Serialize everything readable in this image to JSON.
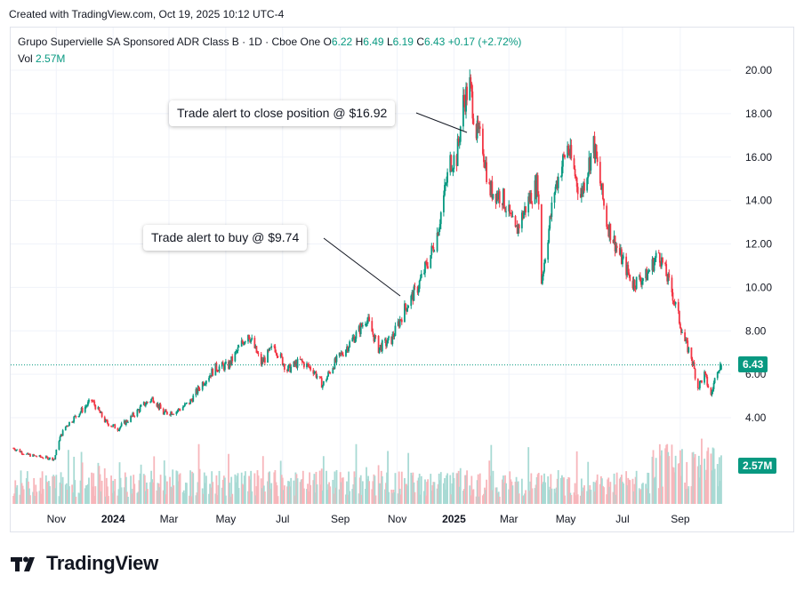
{
  "header": {
    "created_text": "Created with TradingView.com, Oct 19, 2025 10:12 UTC-4"
  },
  "legend": {
    "symbol_text": "Grupo Supervielle SA Sponsored ADR Class B · 1D · Cboe One",
    "open_label": "O",
    "open_value": "6.22",
    "high_label": "H",
    "high_value": "6.49",
    "low_label": "L",
    "low_value": "6.19",
    "close_label": "C",
    "close_value": "6.43",
    "change_value": "+0.17 (+2.72%)",
    "volume_label": "Vol",
    "volume_value": "2.57M"
  },
  "callouts": {
    "buy": "Trade alert to buy @ $9.74",
    "close": "Trade alert to close position @ $16.92"
  },
  "price_tag": "6.43",
  "volume_tag": "2.57M",
  "brand": {
    "name": "TradingView",
    "logo_icon": "tradingview-logo-icon"
  },
  "colors": {
    "up": "#089981",
    "down": "#f23645",
    "up_vol": "#a8dad4",
    "down_vol": "#f7b6bb"
  },
  "chart_data": {
    "type": "candlestick",
    "ylim": [
      2,
      20
    ],
    "y_ticks": [
      "20.00",
      "18.00",
      "16.00",
      "14.00",
      "12.00",
      "10.00",
      "8.00",
      "6.00",
      "4.00"
    ],
    "y_tick_values": [
      20,
      18,
      16,
      14,
      12,
      10,
      8,
      6,
      4
    ],
    "x_ticks": [
      "Nov",
      "2024",
      "Mar",
      "May",
      "Jul",
      "Sep",
      "Nov",
      "2025",
      "Mar",
      "May",
      "Jul",
      "Sep"
    ],
    "x_tick_bold": [
      false,
      true,
      false,
      false,
      false,
      false,
      false,
      true,
      false,
      false,
      false,
      false
    ],
    "x_tick_dates": [
      "2023-11",
      "2024-01",
      "2024-03",
      "2024-05",
      "2024-07",
      "2024-09",
      "2024-11",
      "2025-01",
      "2025-03",
      "2025-05",
      "2025-07",
      "2025-09"
    ],
    "last_price": 6.43,
    "approx_close_path": [
      [
        "2023-09-18",
        2.6
      ],
      [
        "2023-10-02",
        2.3
      ],
      [
        "2023-10-16",
        2.2
      ],
      [
        "2023-11-01",
        2.1
      ],
      [
        "2023-11-06",
        3.0
      ],
      [
        "2023-11-13",
        3.6
      ],
      [
        "2023-11-27",
        4.2
      ],
      [
        "2023-12-11",
        4.8
      ],
      [
        "2023-12-26",
        3.8
      ],
      [
        "2024-01-08",
        3.5
      ],
      [
        "2024-01-22",
        4.0
      ],
      [
        "2024-02-05",
        4.6
      ],
      [
        "2024-02-15",
        4.9
      ],
      [
        "2024-02-26",
        4.2
      ],
      [
        "2024-03-11",
        4.3
      ],
      [
        "2024-03-25",
        4.7
      ],
      [
        "2024-04-08",
        5.6
      ],
      [
        "2024-04-22",
        6.3
      ],
      [
        "2024-05-06",
        6.4
      ],
      [
        "2024-05-20",
        7.4
      ],
      [
        "2024-05-27",
        7.9
      ],
      [
        "2024-06-10",
        6.5
      ],
      [
        "2024-06-24",
        7.3
      ],
      [
        "2024-07-08",
        6.2
      ],
      [
        "2024-07-22",
        6.6
      ],
      [
        "2024-08-05",
        6.2
      ],
      [
        "2024-08-15",
        5.5
      ],
      [
        "2024-08-26",
        6.4
      ],
      [
        "2024-09-09",
        7.2
      ],
      [
        "2024-09-23",
        8.0
      ],
      [
        "2024-10-01",
        8.6
      ],
      [
        "2024-10-14",
        7.2
      ],
      [
        "2024-10-28",
        7.6
      ],
      [
        "2024-11-11",
        9.0
      ],
      [
        "2024-11-25",
        10.0
      ],
      [
        "2024-12-09",
        11.5
      ],
      [
        "2024-12-16",
        12.5
      ],
      [
        "2024-12-30",
        15.8
      ],
      [
        "2025-01-06",
        16.0
      ],
      [
        "2025-01-13",
        18.5
      ],
      [
        "2025-01-20",
        19.3
      ],
      [
        "2025-01-27",
        17.2
      ],
      [
        "2025-02-03",
        16.5
      ],
      [
        "2025-02-10",
        14.5
      ],
      [
        "2025-02-24",
        14.2
      ],
      [
        "2025-03-10",
        12.5
      ],
      [
        "2025-03-24",
        14.0
      ],
      [
        "2025-04-03",
        14.8
      ],
      [
        "2025-04-07",
        10.3
      ],
      [
        "2025-04-21",
        14.5
      ],
      [
        "2025-05-05",
        16.5
      ],
      [
        "2025-05-19",
        14.2
      ],
      [
        "2025-06-02",
        16.6
      ],
      [
        "2025-06-16",
        13.0
      ],
      [
        "2025-06-30",
        11.5
      ],
      [
        "2025-07-14",
        10.2
      ],
      [
        "2025-07-28",
        10.5
      ],
      [
        "2025-08-11",
        11.6
      ],
      [
        "2025-08-25",
        9.8
      ],
      [
        "2025-09-08",
        7.5
      ],
      [
        "2025-09-15",
        6.8
      ],
      [
        "2025-09-22",
        5.4
      ],
      [
        "2025-09-29",
        6.0
      ],
      [
        "2025-10-06",
        5.0
      ],
      [
        "2025-10-13",
        6.3
      ],
      [
        "2025-10-17",
        6.43
      ]
    ]
  }
}
